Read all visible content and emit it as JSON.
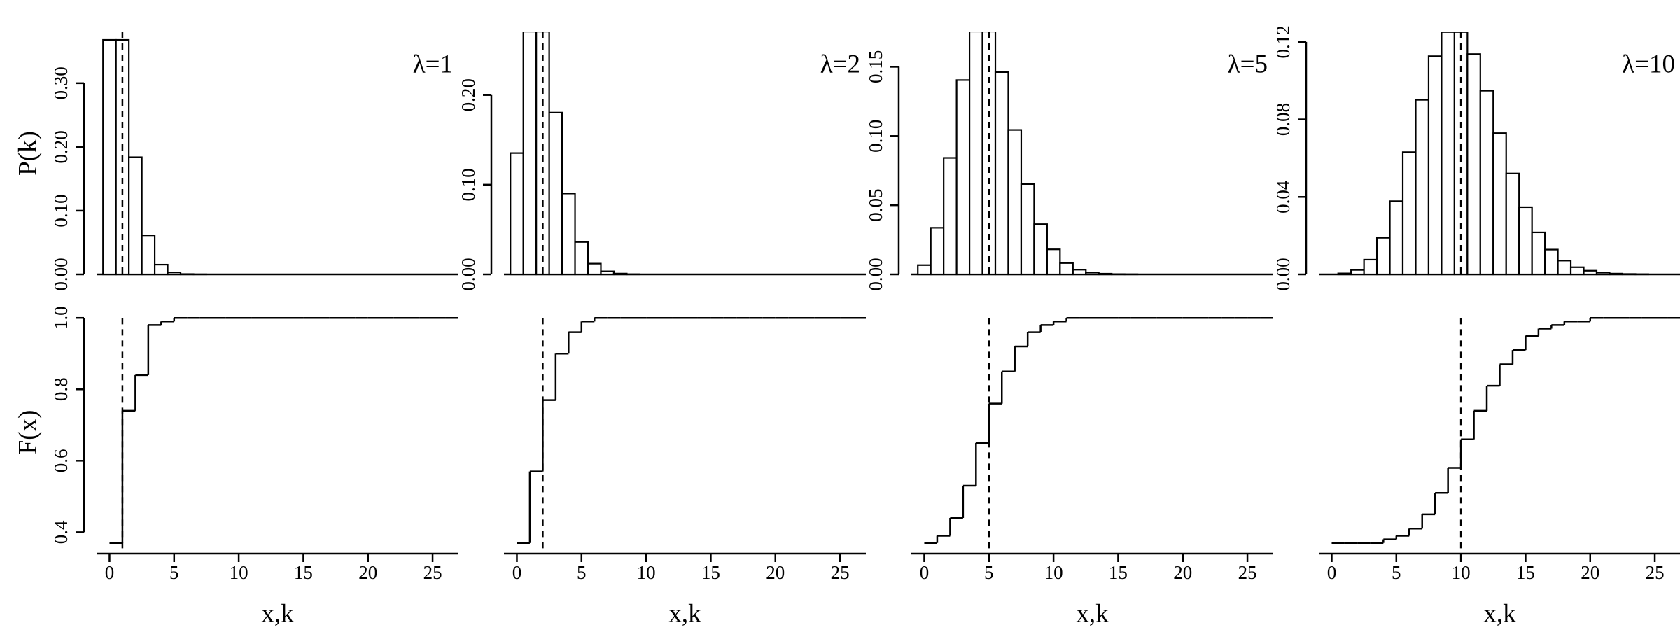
{
  "chart_data": [
    {
      "type": "bar",
      "ylabel": "P(k)",
      "annotation": "λ=1",
      "vline": 1,
      "x": [
        0,
        1,
        2,
        3,
        4,
        5,
        6,
        7,
        8,
        9,
        10,
        11,
        12,
        13,
        14,
        15,
        16,
        17,
        18,
        19,
        20,
        21,
        22,
        23,
        24,
        25,
        26
      ],
      "values": [
        0.3679,
        0.3679,
        0.1839,
        0.0613,
        0.0153,
        0.0031,
        0.0005,
        0.0001,
        0,
        0,
        0,
        0,
        0,
        0,
        0,
        0,
        0,
        0,
        0,
        0,
        0,
        0,
        0,
        0,
        0,
        0,
        0
      ],
      "xlim": [
        -1,
        27
      ],
      "ylim": [
        0,
        0.38
      ],
      "yticks": [
        {
          "value": 0,
          "label": "0.00"
        },
        {
          "value": 0.1,
          "label": "0.10"
        },
        {
          "value": 0.2,
          "label": "0.20"
        },
        {
          "value": 0.3,
          "label": "0.30"
        }
      ]
    },
    {
      "type": "bar",
      "annotation": "λ=2",
      "vline": 2,
      "x": [
        0,
        1,
        2,
        3,
        4,
        5,
        6,
        7,
        8,
        9,
        10,
        11,
        12,
        13,
        14,
        15,
        16,
        17,
        18,
        19,
        20,
        21,
        22,
        23,
        24,
        25,
        26
      ],
      "values": [
        0.1353,
        0.2707,
        0.2707,
        0.1804,
        0.0902,
        0.0361,
        0.012,
        0.0034,
        0.0009,
        0.0002,
        0,
        0,
        0,
        0,
        0,
        0,
        0,
        0,
        0,
        0,
        0,
        0,
        0,
        0,
        0,
        0,
        0
      ],
      "xlim": [
        -1,
        27
      ],
      "ylim": [
        0,
        0.27
      ],
      "yticks": [
        {
          "value": 0,
          "label": "0.00"
        },
        {
          "value": 0.1,
          "label": "0.10"
        },
        {
          "value": 0.2,
          "label": "0.20"
        }
      ]
    },
    {
      "type": "bar",
      "annotation": "λ=5",
      "vline": 5,
      "x": [
        0,
        1,
        2,
        3,
        4,
        5,
        6,
        7,
        8,
        9,
        10,
        11,
        12,
        13,
        14,
        15,
        16,
        17,
        18,
        19,
        20,
        21,
        22,
        23,
        24,
        25,
        26
      ],
      "values": [
        0.0067,
        0.0337,
        0.0842,
        0.1404,
        0.1755,
        0.1755,
        0.1462,
        0.1044,
        0.0653,
        0.0363,
        0.0181,
        0.0082,
        0.0034,
        0.0013,
        0.0005,
        0.0002,
        0.0001,
        0,
        0,
        0,
        0,
        0,
        0,
        0,
        0,
        0,
        0
      ],
      "xlim": [
        -1,
        27
      ],
      "ylim": [
        0,
        0.175
      ],
      "yticks": [
        {
          "value": 0,
          "label": "0.00"
        },
        0.05,
        {
          "value": 0.1,
          "label": "0.10"
        },
        0.15
      ]
    },
    {
      "type": "bar",
      "annotation": "λ=10",
      "vline": 10,
      "x": [
        0,
        1,
        2,
        3,
        4,
        5,
        6,
        7,
        8,
        9,
        10,
        11,
        12,
        13,
        14,
        15,
        16,
        17,
        18,
        19,
        20,
        21,
        22,
        23,
        24,
        25,
        26
      ],
      "values": [
        0,
        0.0005,
        0.0023,
        0.0076,
        0.0189,
        0.0378,
        0.0631,
        0.0901,
        0.1126,
        0.1251,
        0.1251,
        0.1137,
        0.0948,
        0.0729,
        0.0521,
        0.0347,
        0.0217,
        0.0128,
        0.0071,
        0.0037,
        0.0019,
        0.0009,
        0.0004,
        0.0002,
        0.0001,
        0,
        0
      ],
      "xlim": [
        -1,
        27
      ],
      "ylim": [
        0,
        0.125
      ],
      "yticks": [
        {
          "value": 0,
          "label": "0.00"
        },
        0.04,
        0.08,
        0.12
      ]
    },
    {
      "type": "step",
      "ylabel": "F(x)",
      "xlabel": "x,k",
      "vline": 1,
      "x": [
        0,
        1,
        2,
        3,
        4,
        5,
        6,
        7,
        8,
        9,
        10,
        11,
        12,
        13,
        14,
        15,
        16,
        17,
        18,
        19,
        20,
        21,
        22,
        23,
        24,
        25,
        26
      ],
      "values": [
        0.37,
        0.74,
        0.84,
        0.98,
        0.99,
        1,
        1,
        1,
        1,
        1,
        1,
        1,
        1,
        1,
        1,
        1,
        1,
        1,
        1,
        1,
        1,
        1,
        1,
        1,
        1,
        1,
        1
      ],
      "xlim": [
        -1,
        27
      ],
      "ylim": [
        0.34,
        1.02
      ],
      "xticks": [
        0,
        5,
        10,
        15,
        20,
        25
      ],
      "yticks": [
        0.4,
        0.6,
        0.8,
        {
          "value": 1,
          "label": "1.0"
        }
      ]
    },
    {
      "type": "step",
      "xlabel": "x,k",
      "vline": 2,
      "x": [
        0,
        1,
        2,
        3,
        4,
        5,
        6,
        7,
        8,
        9,
        10,
        11,
        12,
        13,
        14,
        15,
        16,
        17,
        18,
        19,
        20,
        21,
        22,
        23,
        24,
        25,
        26
      ],
      "values": [
        0.37,
        0.57,
        0.77,
        0.9,
        0.96,
        0.99,
        1,
        1,
        1,
        1,
        1,
        1,
        1,
        1,
        1,
        1,
        1,
        1,
        1,
        1,
        1,
        1,
        1,
        1,
        1,
        1,
        1
      ],
      "xlim": [
        -1,
        27
      ],
      "ylim": [
        0.34,
        1.02
      ],
      "xticks": [
        0,
        5,
        10,
        15,
        20,
        25
      ]
    },
    {
      "type": "step",
      "xlabel": "x,k",
      "vline": 5,
      "x": [
        0,
        1,
        2,
        3,
        4,
        5,
        6,
        7,
        8,
        9,
        10,
        11,
        12,
        13,
        14,
        15,
        16,
        17,
        18,
        19,
        20,
        21,
        22,
        23,
        24,
        25,
        26
      ],
      "values": [
        0.37,
        0.39,
        0.44,
        0.53,
        0.65,
        0.76,
        0.85,
        0.92,
        0.96,
        0.98,
        0.99,
        1,
        1,
        1,
        1,
        1,
        1,
        1,
        1,
        1,
        1,
        1,
        1,
        1,
        1,
        1,
        1
      ],
      "xlim": [
        -1,
        27
      ],
      "ylim": [
        0.34,
        1.02
      ],
      "xticks": [
        0,
        5,
        10,
        15,
        20,
        25
      ]
    },
    {
      "type": "step",
      "xlabel": "x,k",
      "vline": 10,
      "x": [
        0,
        1,
        2,
        3,
        4,
        5,
        6,
        7,
        8,
        9,
        10,
        11,
        12,
        13,
        14,
        15,
        16,
        17,
        18,
        19,
        20,
        21,
        22,
        23,
        24,
        25,
        26
      ],
      "values": [
        0.37,
        0.37,
        0.37,
        0.37,
        0.38,
        0.39,
        0.41,
        0.45,
        0.51,
        0.58,
        0.66,
        0.74,
        0.81,
        0.87,
        0.91,
        0.95,
        0.97,
        0.98,
        0.99,
        0.99,
        1,
        1,
        1,
        1,
        1,
        1,
        1
      ],
      "xlim": [
        -1,
        27
      ],
      "ylim": [
        0.34,
        1.02
      ],
      "xticks": [
        0,
        5,
        10,
        15,
        20,
        25
      ]
    }
  ]
}
